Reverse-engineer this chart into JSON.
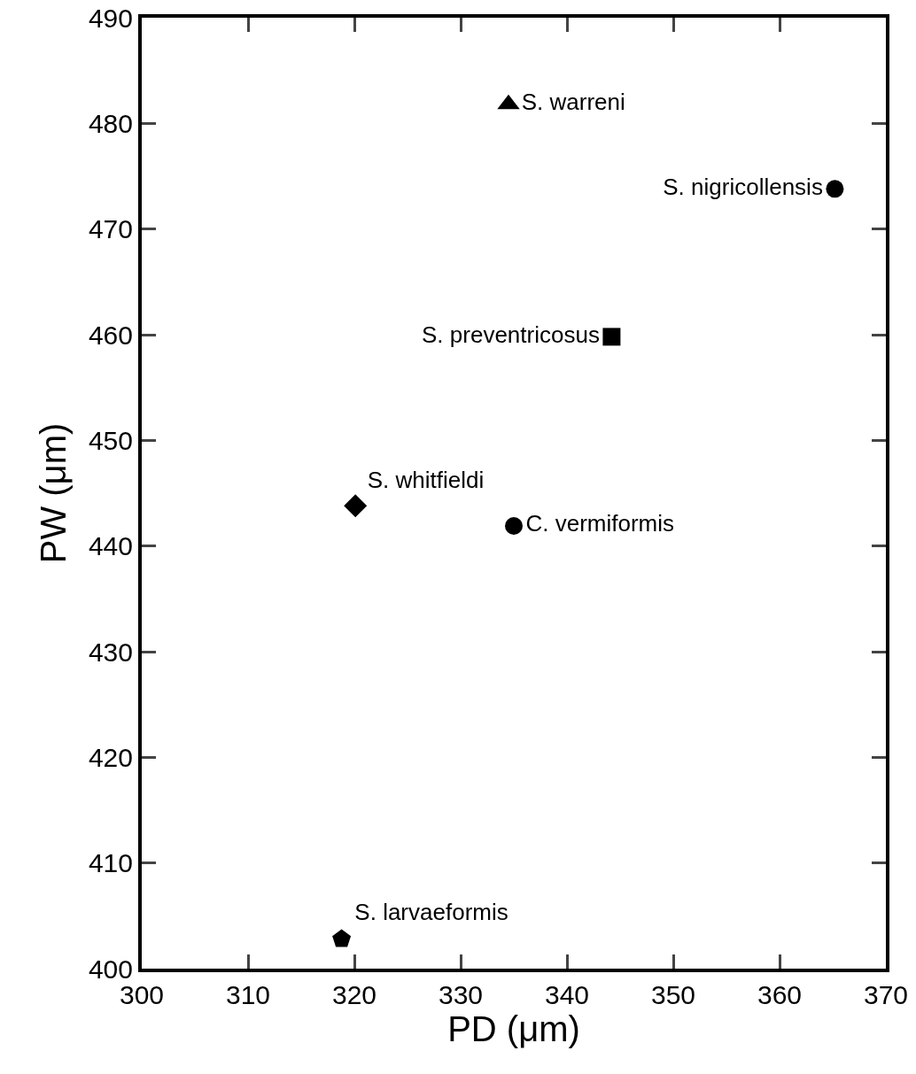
{
  "chart_data": {
    "type": "scatter",
    "xlabel": "PD (μm)",
    "ylabel": "PW (μm)",
    "xlim": [
      300,
      370
    ],
    "xticks": [
      300,
      310,
      320,
      330,
      340,
      350,
      360,
      370
    ],
    "ylim": [
      400,
      490
    ],
    "yticks": [
      400,
      410,
      420,
      430,
      440,
      450,
      460,
      470,
      480,
      490
    ],
    "grid": false,
    "legend": false,
    "series": [
      {
        "name": "S. warreni",
        "color": "#000000",
        "marker": "triangle",
        "x": [
          334.5
        ],
        "values": [
          481.8
        ]
      },
      {
        "name": "S. nigricollensis",
        "color": "#000000",
        "marker": "circle",
        "x": [
          365.2
        ],
        "values": [
          473.8
        ]
      },
      {
        "name": "S. preventricosus",
        "color": "#000000",
        "marker": "square",
        "x": [
          344.2
        ],
        "values": [
          459.8
        ]
      },
      {
        "name": "S. whitfieldi",
        "color": "#000000",
        "marker": "diamond",
        "x": [
          320.1
        ],
        "values": [
          443.8
        ]
      },
      {
        "name": "C. vermiformis",
        "color": "#000000",
        "marker": "circle",
        "x": [
          335
        ],
        "values": [
          441.9
        ]
      },
      {
        "name": "S. larvaeformis",
        "color": "#000000",
        "x": [
          318.8
        ],
        "values": [
          402.8
        ]
      }
    ]
  }
}
